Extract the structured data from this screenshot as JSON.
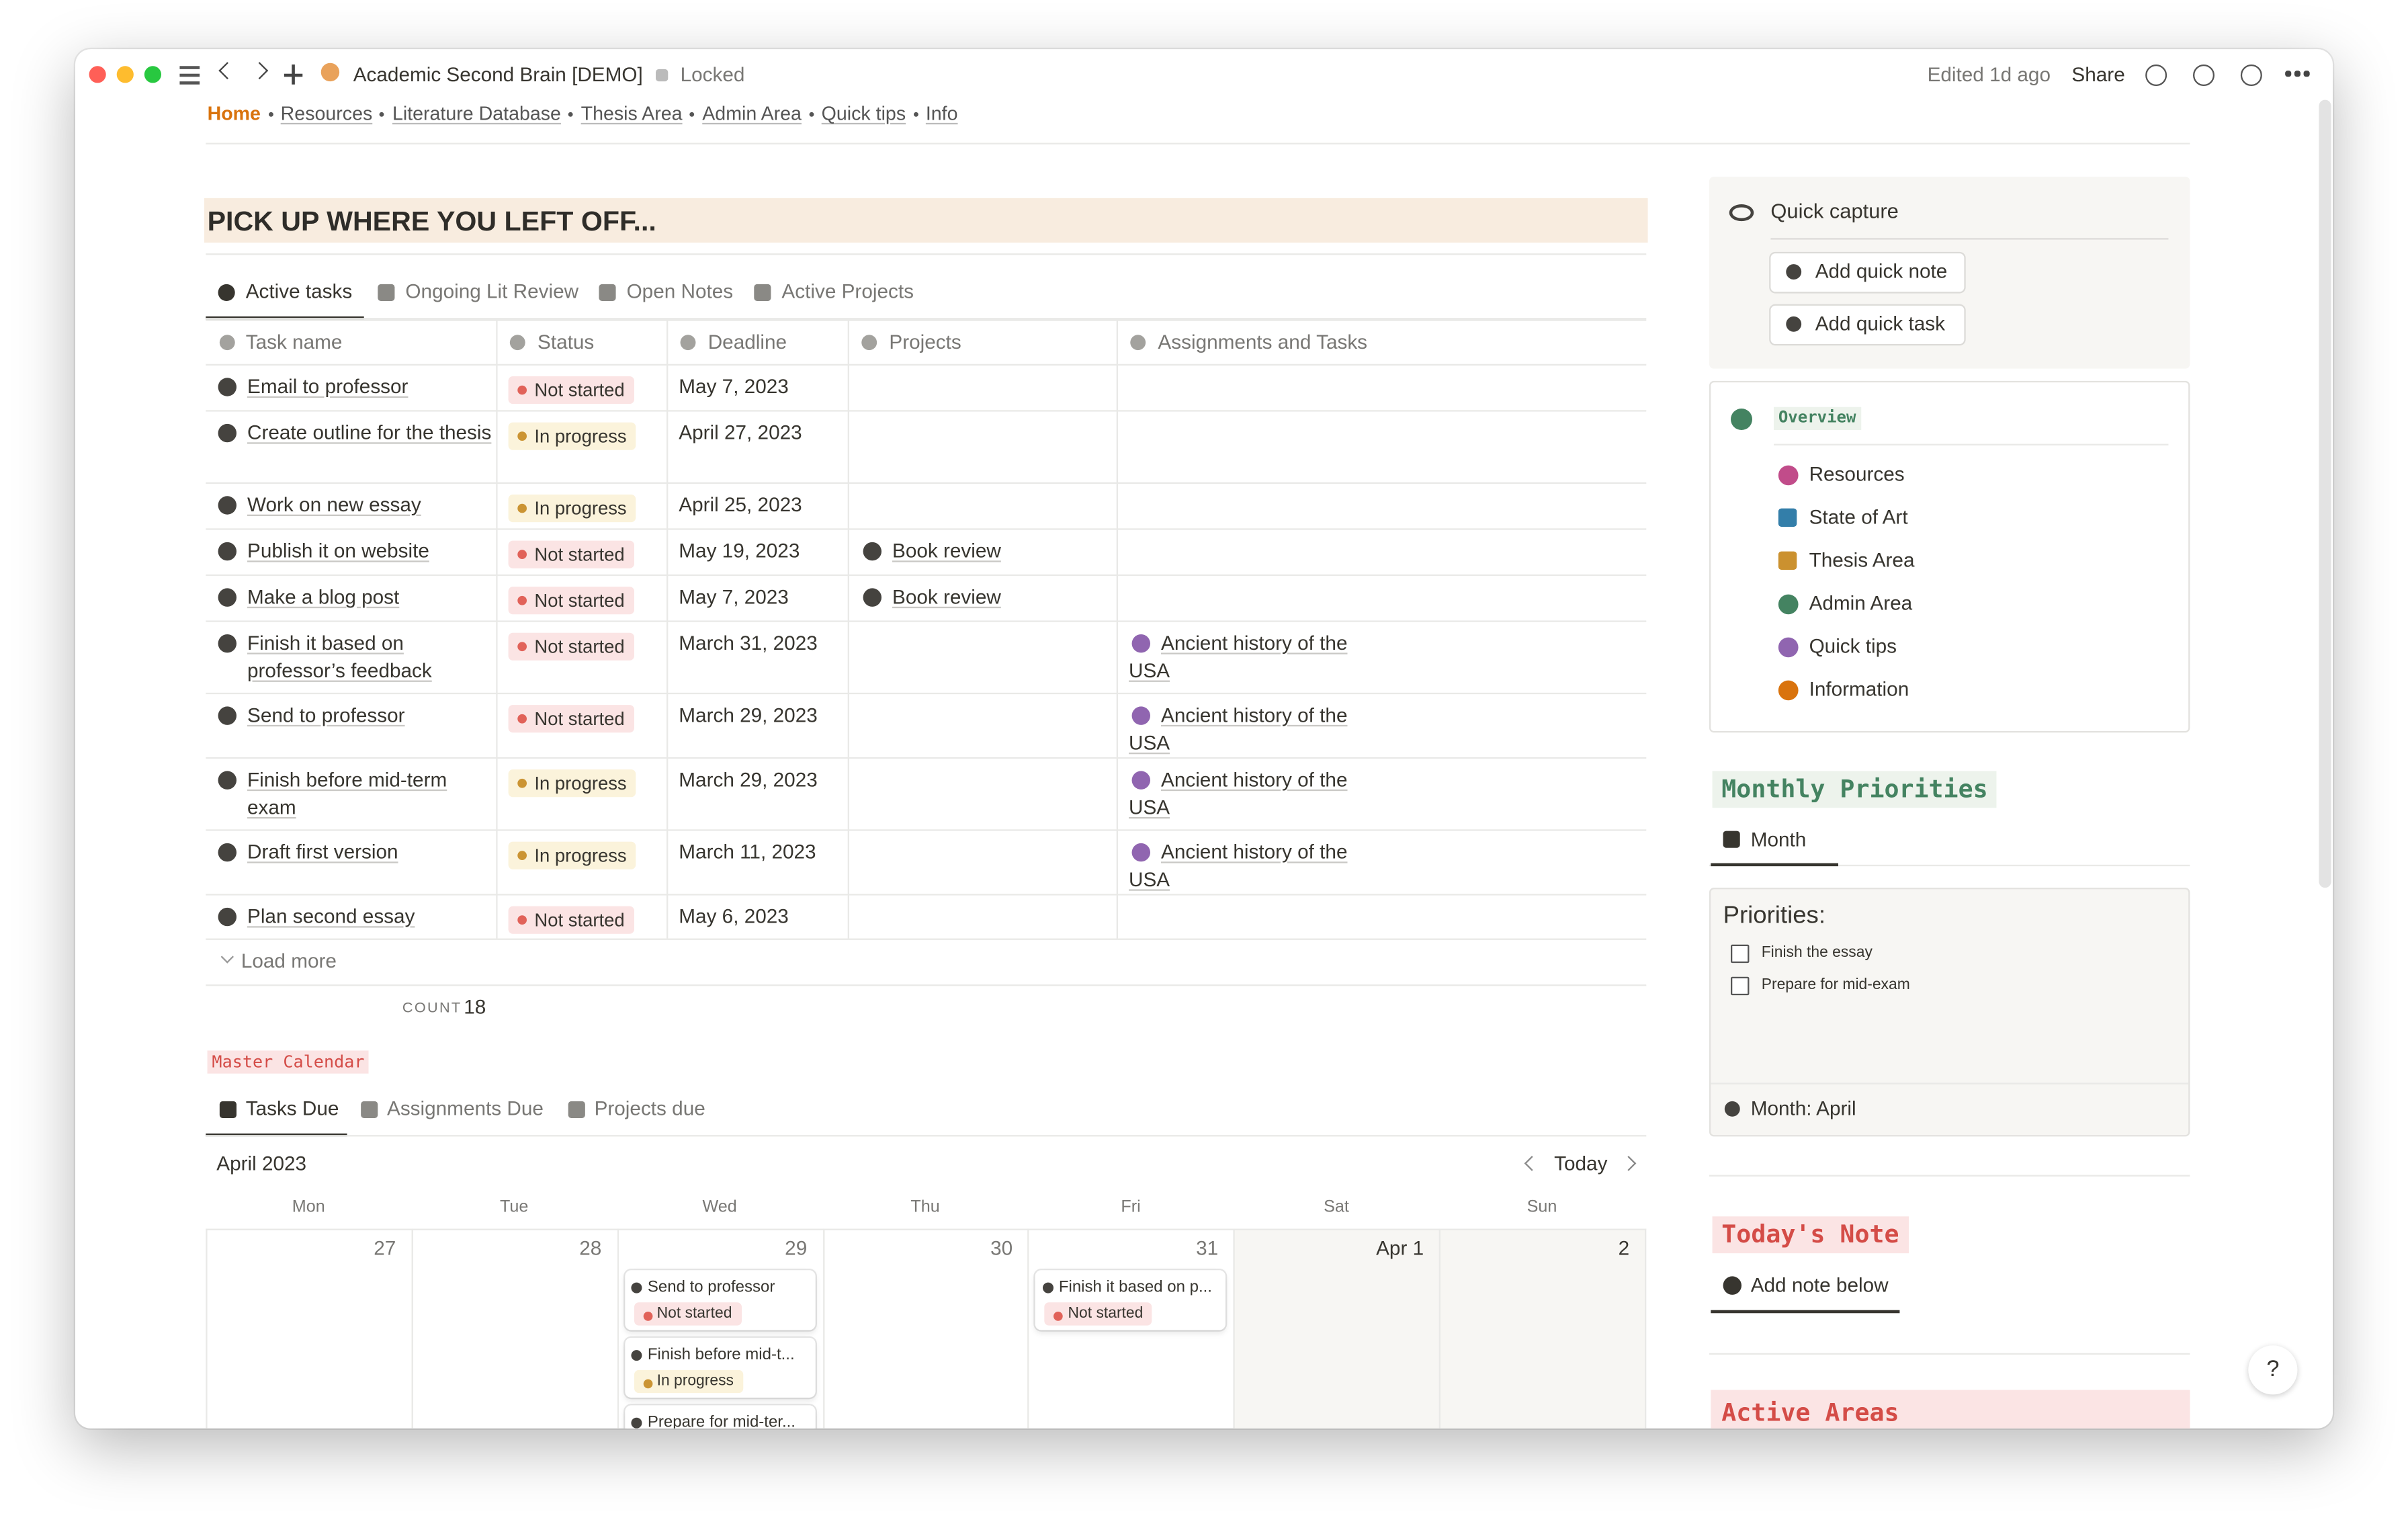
{
  "window": {
    "title": "Academic Second Brain [DEMO]",
    "locked": "Locked",
    "edited": "Edited 1d ago",
    "share": "Share"
  },
  "breadcrumbs": [
    "Home",
    "Resources",
    "Literature Database",
    "Thesis Area",
    "Admin Area",
    "Quick tips",
    "Info"
  ],
  "header": "PICK UP WHERE YOU LEFT OFF...",
  "tabs": [
    "Active tasks",
    "Ongoing Lit Review",
    "Open Notes",
    "Active Projects"
  ],
  "table": {
    "columns": [
      "Task name",
      "Status",
      "Deadline",
      "Projects",
      "Assignments and Tasks"
    ],
    "rows": [
      {
        "name": "Email to professor",
        "status": "Not started",
        "deadline": "May 7, 2023"
      },
      {
        "name": "Create outline for the thesis",
        "status": "In progress",
        "deadline": "April 27, 2023"
      },
      {
        "name": "Work on new essay",
        "status": "In progress",
        "deadline": "April 25, 2023"
      },
      {
        "name": "Publish it on website",
        "status": "Not started",
        "deadline": "May 19, 2023",
        "project": "Book review"
      },
      {
        "name": "Make a blog post",
        "status": "Not started",
        "deadline": "May 7, 2023",
        "project": "Book review"
      },
      {
        "name": "Finish it based on professor’s feedback",
        "status": "Not started",
        "deadline": "March 31, 2023",
        "assignment": "Ancient history of the USA"
      },
      {
        "name": "Send to professor",
        "status": "Not started",
        "deadline": "March 29, 2023",
        "assignment": "Ancient history of the USA"
      },
      {
        "name": "Finish before mid-term exam",
        "status": "In progress",
        "deadline": "March 29, 2023",
        "assignment": "Ancient history of the USA"
      },
      {
        "name": "Draft first version",
        "status": "In progress",
        "deadline": "March 11, 2023",
        "assignment": "Ancient history of the USA"
      },
      {
        "name": "Plan second essay",
        "status": "Not started",
        "deadline": "May 6, 2023"
      }
    ],
    "load_more": "Load more",
    "count_label": "COUNT",
    "count": 18
  },
  "calendar": {
    "label": "Master Calendar",
    "tabs": [
      "Tasks Due",
      "Assignments Due",
      "Projects due"
    ],
    "month": "April 2023",
    "today": "Today",
    "weekdays": [
      "Mon",
      "Tue",
      "Wed",
      "Thu",
      "Fri",
      "Sat",
      "Sun"
    ],
    "days": [
      "27",
      "28",
      "29",
      "30",
      "31",
      "Apr 1",
      "2"
    ],
    "events": [
      {
        "day": 2,
        "name": "Send to professor",
        "status": "Not started"
      },
      {
        "day": 2,
        "name": "Finish before mid-t...",
        "status": "In progress"
      },
      {
        "day": 2,
        "name": "Prepare for mid-ter..."
      },
      {
        "day": 4,
        "name": "Finish it based on p...",
        "status": "Not started"
      }
    ]
  },
  "sidebar": {
    "quick_capture": {
      "title": "Quick capture",
      "buttons": [
        "Add quick note",
        "Add quick task"
      ]
    },
    "overview": {
      "label": "Overview",
      "items": [
        "Resources",
        "State of Art",
        "Thesis Area",
        "Admin Area",
        "Quick tips",
        "Information"
      ]
    },
    "monthly": {
      "title": "Monthly Priorities",
      "tab": "Month",
      "heading": "Priorities:",
      "items": [
        "Finish the essay",
        "Prepare for mid-exam"
      ],
      "footer": "Month: April"
    },
    "todays_note": {
      "title": "Today's Note",
      "button": "Add note below"
    },
    "active_areas": {
      "title": "Active Areas"
    }
  },
  "help": "?"
}
